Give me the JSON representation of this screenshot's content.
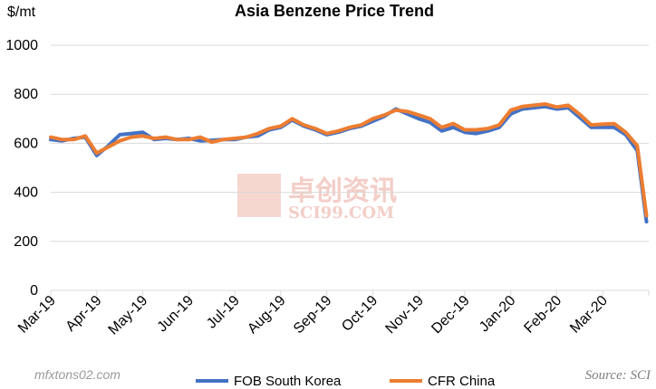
{
  "chart_data": {
    "type": "line",
    "title": "Asia Benzene Price Trend",
    "unit_label": "$/mt",
    "xlabel": "",
    "ylabel": "$/mt",
    "ylim": [
      0,
      1000
    ],
    "yticks": [
      0,
      200,
      400,
      600,
      800,
      1000
    ],
    "x_tick_labels": [
      "Mar-19",
      "Apr-19",
      "May-19",
      "Jun-19",
      "Jul-19",
      "Aug-19",
      "Sep-19",
      "Oct-19",
      "Nov-19",
      "Dec-19",
      "Jan-20",
      "Feb-20",
      "Mar-20"
    ],
    "grid": true,
    "legend_position": "bottom",
    "source": "Source: SCI",
    "watermark": {
      "cn": "卓创资讯",
      "en": "SCI99.COM"
    },
    "forum_mark": "mfxtons02.com",
    "series": [
      {
        "name": "FOB South Korea",
        "color": "#4472C4",
        "x": [
          0,
          0.25,
          0.5,
          0.75,
          1,
          1.25,
          1.5,
          1.75,
          2,
          2.25,
          2.5,
          2.75,
          3,
          3.25,
          3.5,
          3.75,
          4,
          4.25,
          4.5,
          4.75,
          5,
          5.25,
          5.5,
          5.75,
          6,
          6.25,
          6.5,
          6.75,
          7,
          7.25,
          7.5,
          7.75,
          8,
          8.25,
          8.5,
          8.75,
          9,
          9.25,
          9.5,
          9.75,
          10,
          10.25,
          10.5,
          10.75,
          11,
          11.25,
          11.5,
          11.75,
          12,
          12.25,
          12.5,
          12.75,
          12.95
        ],
        "values": [
          615,
          610,
          620,
          625,
          550,
          590,
          635,
          640,
          645,
          615,
          620,
          615,
          620,
          610,
          612,
          615,
          615,
          625,
          630,
          655,
          665,
          695,
          670,
          655,
          635,
          645,
          660,
          670,
          690,
          710,
          740,
          720,
          700,
          685,
          650,
          665,
          645,
          640,
          650,
          665,
          720,
          740,
          745,
          750,
          740,
          745,
          705,
          665,
          665,
          665,
          635,
          570,
          280
        ]
      },
      {
        "name": "CFR China",
        "color": "#ED7D31",
        "x": [
          0,
          0.25,
          0.5,
          0.75,
          1,
          1.25,
          1.5,
          1.75,
          2,
          2.25,
          2.5,
          2.75,
          3,
          3.25,
          3.5,
          3.75,
          4,
          4.25,
          4.5,
          4.75,
          5,
          5.25,
          5.5,
          5.75,
          6,
          6.25,
          6.5,
          6.75,
          7,
          7.25,
          7.5,
          7.75,
          8,
          8.25,
          8.5,
          8.75,
          9,
          9.25,
          9.5,
          9.75,
          10,
          10.25,
          10.5,
          10.75,
          11,
          11.25,
          11.5,
          11.75,
          12,
          12.25,
          12.5,
          12.75,
          12.95
        ],
        "values": [
          625,
          615,
          615,
          630,
          560,
          585,
          610,
          625,
          630,
          620,
          625,
          615,
          615,
          625,
          605,
          615,
          620,
          625,
          640,
          660,
          670,
          700,
          675,
          660,
          640,
          650,
          665,
          675,
          700,
          715,
          735,
          730,
          715,
          700,
          665,
          680,
          655,
          655,
          660,
          675,
          735,
          750,
          755,
          760,
          748,
          755,
          718,
          675,
          678,
          680,
          645,
          590,
          305
        ]
      }
    ]
  }
}
